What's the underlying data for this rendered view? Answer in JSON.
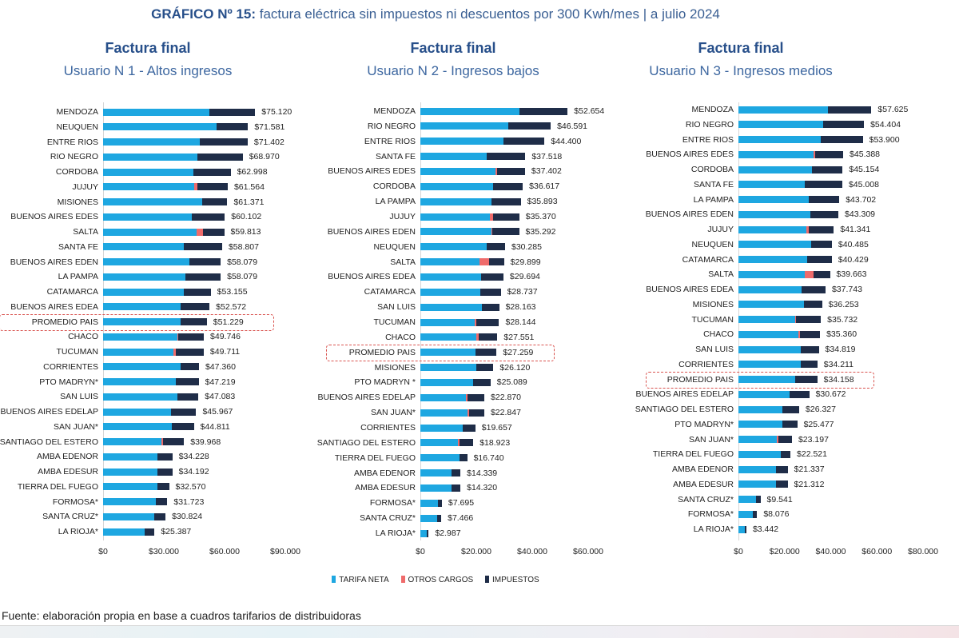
{
  "title": {
    "prefix": "GRÁFICO Nº 15:",
    "text": " factura eléctrica sin impuestos ni descuentos por 300 Kwh/mes | a julio 2024"
  },
  "legend": [
    {
      "label": "TARIFA NETA",
      "color": "#1ea7e1"
    },
    {
      "label": "OTROS CARGOS",
      "color": "#ef6b6b"
    },
    {
      "label": "IMPUESTOS",
      "color": "#1f2d48"
    }
  ],
  "source": "Fuente: elaboración propia en base a cuadros tarifarios de distribuidoras",
  "chart_data": [
    {
      "type": "bar",
      "orientation": "horizontal-stacked",
      "title": "Factura final",
      "subtitle": "Usuario N 1 - Altos ingresos",
      "xlim": [
        0,
        90000
      ],
      "ticks": [
        "$0",
        "$30.000",
        "$60.000",
        "$90.000"
      ],
      "tick_values": [
        0,
        30000,
        60000,
        90000
      ],
      "rows": [
        {
          "name": "MENDOZA",
          "label": "$75.120",
          "total": 75120,
          "neta": 52500,
          "otros": 0
        },
        {
          "name": "NEUQUEN",
          "label": "$71.581",
          "total": 71581,
          "neta": 56200,
          "otros": 0
        },
        {
          "name": "ENTRE RIOS",
          "label": "$71.402",
          "total": 71402,
          "neta": 47900,
          "otros": 0
        },
        {
          "name": "RIO NEGRO",
          "label": "$68.970",
          "total": 68970,
          "neta": 46600,
          "otros": 0
        },
        {
          "name": "CORDOBA",
          "label": "$62.998",
          "total": 62998,
          "neta": 44600,
          "otros": 0
        },
        {
          "name": "JUJUY",
          "label": "$61.564",
          "total": 61564,
          "neta": 45000,
          "otros": 1600
        },
        {
          "name": "MISIONES",
          "label": "$61.371",
          "total": 61371,
          "neta": 48900,
          "otros": 0
        },
        {
          "name": "BUENOS AIRES EDES",
          "label": "$60.102",
          "total": 60102,
          "neta": 43900,
          "otros": 0
        },
        {
          "name": "SALTA",
          "label": "$59.813",
          "total": 59813,
          "neta": 46000,
          "otros": 3400
        },
        {
          "name": "SANTA FE",
          "label": "$58.807",
          "total": 58807,
          "neta": 39700,
          "otros": 0
        },
        {
          "name": "BUENOS AIRES EDEN",
          "label": "$58.079",
          "total": 58079,
          "neta": 42600,
          "otros": 0
        },
        {
          "name": "LA PAMPA",
          "label": "$58.079",
          "total": 58079,
          "neta": 40800,
          "otros": 0
        },
        {
          "name": "CATAMARCA",
          "label": "$53.155",
          "total": 53155,
          "neta": 40000,
          "otros": 0
        },
        {
          "name": "BUENOS AIRES EDEA",
          "label": "$52.572",
          "total": 52572,
          "neta": 38400,
          "otros": 0
        },
        {
          "name": "PROMEDIO PAIS",
          "label": "$51.229",
          "total": 51229,
          "neta": 38200,
          "otros": 0,
          "highlight": true
        },
        {
          "name": "CHACO",
          "label": "$49.746",
          "total": 49746,
          "neta": 36800,
          "otros": 500
        },
        {
          "name": "TUCUMAN",
          "label": "$49.711",
          "total": 49711,
          "neta": 34700,
          "otros": 1100
        },
        {
          "name": "CORRIENTES",
          "label": "$47.360",
          "total": 47360,
          "neta": 38200,
          "otros": 0
        },
        {
          "name": "PTO MADRYN*",
          "label": "$47.219",
          "total": 47219,
          "neta": 36100,
          "otros": 0
        },
        {
          "name": "SAN LUIS",
          "label": "$47.083",
          "total": 47083,
          "neta": 36800,
          "otros": 0
        },
        {
          "name": "BUENOS AIRES EDELAP",
          "label": "$45.967",
          "total": 45967,
          "neta": 33400,
          "otros": 0
        },
        {
          "name": "SAN JUAN*",
          "label": "$44.811",
          "total": 44811,
          "neta": 33800,
          "otros": 0
        },
        {
          "name": "SANTIAGO DEL ESTERO",
          "label": "$39.968",
          "total": 39968,
          "neta": 28900,
          "otros": 600
        },
        {
          "name": "AMBA EDENOR",
          "label": "$34.228",
          "total": 34228,
          "neta": 26800,
          "otros": 0
        },
        {
          "name": "AMBA EDESUR",
          "label": "$34.192",
          "total": 34192,
          "neta": 26800,
          "otros": 0
        },
        {
          "name": "TIERRA DEL FUEGO",
          "label": "$32.570",
          "total": 32570,
          "neta": 26800,
          "otros": 0
        },
        {
          "name": "FORMOSA*",
          "label": "$31.723",
          "total": 31723,
          "neta": 26100,
          "otros": 0
        },
        {
          "name": "SANTA CRUZ*",
          "label": "$30.824",
          "total": 30824,
          "neta": 25300,
          "otros": 0
        },
        {
          "name": "LA RIOJA*",
          "label": "$25.387",
          "total": 25387,
          "neta": 20700,
          "otros": 0
        }
      ]
    },
    {
      "type": "bar",
      "orientation": "horizontal-stacked",
      "title": "Factura final",
      "subtitle": "Usuario N 2 - Ingresos bajos",
      "xlim": [
        0,
        60000
      ],
      "ticks": [
        "$0",
        "$20.000",
        "$40.000",
        "$60.000"
      ],
      "tick_values": [
        0,
        20000,
        40000,
        60000
      ],
      "rows": [
        {
          "name": "MENDOZA",
          "label": "$52.654",
          "total": 52654,
          "neta": 35300,
          "otros": 0
        },
        {
          "name": "RIO NEGRO",
          "label": "$46.591",
          "total": 46591,
          "neta": 31400,
          "otros": 0
        },
        {
          "name": "ENTRE RIOS",
          "label": "$44.400",
          "total": 44400,
          "neta": 29800,
          "otros": 0
        },
        {
          "name": "SANTA FE",
          "label": "$37.518",
          "total": 37518,
          "neta": 23600,
          "otros": 0
        },
        {
          "name": "BUENOS AIRES EDES",
          "label": "$37.402",
          "total": 37402,
          "neta": 26800,
          "otros": 700
        },
        {
          "name": "CORDOBA",
          "label": "$36.617",
          "total": 36617,
          "neta": 26000,
          "otros": 0
        },
        {
          "name": "LA PAMPA",
          "label": "$35.893",
          "total": 35893,
          "neta": 25400,
          "otros": 0
        },
        {
          "name": "JUJUY",
          "label": "$35.370",
          "total": 35370,
          "neta": 24800,
          "otros": 1200
        },
        {
          "name": "BUENOS AIRES EDEN",
          "label": "$35.292",
          "total": 35292,
          "neta": 25400,
          "otros": 300
        },
        {
          "name": "NEUQUEN",
          "label": "$30.285",
          "total": 30285,
          "neta": 23800,
          "otros": 0
        },
        {
          "name": "SALTA",
          "label": "$29.899",
          "total": 29899,
          "neta": 21200,
          "otros": 3400
        },
        {
          "name": "BUENOS AIRES EDEA",
          "label": "$29.694",
          "total": 29694,
          "neta": 21600,
          "otros": 0
        },
        {
          "name": "CATAMARCA",
          "label": "$28.737",
          "total": 28737,
          "neta": 21500,
          "otros": 0
        },
        {
          "name": "SAN LUIS",
          "label": "$28.163",
          "total": 28163,
          "neta": 22000,
          "otros": 0
        },
        {
          "name": "TUCUMAN",
          "label": "$28.144",
          "total": 28144,
          "neta": 19300,
          "otros": 600
        },
        {
          "name": "CHACO",
          "label": "$27.551",
          "total": 27551,
          "neta": 20100,
          "otros": 700
        },
        {
          "name": "PROMEDIO PAIS",
          "label": "$27.259",
          "total": 27259,
          "neta": 19700,
          "otros": 0,
          "highlight": true
        },
        {
          "name": "MISIONES",
          "label": "$26.120",
          "total": 26120,
          "neta": 20100,
          "otros": 0
        },
        {
          "name": "PTO MADRYN *",
          "label": "$25.089",
          "total": 25089,
          "neta": 18900,
          "otros": 0
        },
        {
          "name": "BUENOS AIRES EDELAP",
          "label": "$22.870",
          "total": 22870,
          "neta": 16300,
          "otros": 600
        },
        {
          "name": "SAN JUAN*",
          "label": "$22.847",
          "total": 22847,
          "neta": 16900,
          "otros": 400
        },
        {
          "name": "CORRIENTES",
          "label": "$19.657",
          "total": 19657,
          "neta": 15100,
          "otros": 0
        },
        {
          "name": "SANTIAGO DEL ESTERO",
          "label": "$18.923",
          "total": 18923,
          "neta": 13500,
          "otros": 600
        },
        {
          "name": "TIERRA DEL FUEGO",
          "label": "$16.740",
          "total": 16740,
          "neta": 13900,
          "otros": 0
        },
        {
          "name": "AMBA EDENOR",
          "label": "$14.339",
          "total": 14339,
          "neta": 11000,
          "otros": 0
        },
        {
          "name": "AMBA EDESUR",
          "label": "$14.320",
          "total": 14320,
          "neta": 11200,
          "otros": 0
        },
        {
          "name": "FORMOSA*",
          "label": "$7.695",
          "total": 7695,
          "neta": 6300,
          "otros": 0
        },
        {
          "name": "SANTA CRUZ*",
          "label": "$7.466",
          "total": 7466,
          "neta": 6000,
          "otros": 0
        },
        {
          "name": "LA RIOJA*",
          "label": "$2.987",
          "total": 2987,
          "neta": 2200,
          "otros": 0
        }
      ]
    },
    {
      "type": "bar",
      "orientation": "horizontal-stacked",
      "title": "Factura final",
      "subtitle": "Usuario N 3 - Ingresos medios",
      "xlim": [
        0,
        80000
      ],
      "ticks": [
        "$0",
        "$20.000",
        "$40.000",
        "$60.000",
        "$80.000"
      ],
      "tick_values": [
        0,
        20000,
        40000,
        60000,
        80000
      ],
      "rows": [
        {
          "name": "MENDOZA",
          "label": "$57.625",
          "total": 57625,
          "neta": 38900,
          "otros": 0
        },
        {
          "name": "RIO NEGRO",
          "label": "$54.404",
          "total": 54404,
          "neta": 36600,
          "otros": 0
        },
        {
          "name": "ENTRE RIOS",
          "label": "$53.900",
          "total": 53900,
          "neta": 35800,
          "otros": 0
        },
        {
          "name": "BUENOS AIRES EDES",
          "label": "$45.388",
          "total": 45388,
          "neta": 32700,
          "otros": 700
        },
        {
          "name": "CORDOBA",
          "label": "$45.154",
          "total": 45154,
          "neta": 31900,
          "otros": 0
        },
        {
          "name": "SANTA FE",
          "label": "$45.008",
          "total": 45008,
          "neta": 28900,
          "otros": 0
        },
        {
          "name": "LA PAMPA",
          "label": "$43.702",
          "total": 43702,
          "neta": 30400,
          "otros": 0
        },
        {
          "name": "BUENOS AIRES EDEN",
          "label": "$43.309",
          "total": 43309,
          "neta": 31300,
          "otros": 0
        },
        {
          "name": "JUJUY",
          "label": "$41.341",
          "total": 41341,
          "neta": 29300,
          "otros": 1200
        },
        {
          "name": "NEUQUEN",
          "label": "$40.485",
          "total": 40485,
          "neta": 31400,
          "otros": 0
        },
        {
          "name": "CATAMARCA",
          "label": "$40.429",
          "total": 40429,
          "neta": 29900,
          "otros": 0
        },
        {
          "name": "SALTA",
          "label": "$39.663",
          "total": 39663,
          "neta": 28900,
          "otros": 3700
        },
        {
          "name": "BUENOS AIRES EDEA",
          "label": "$37.743",
          "total": 37743,
          "neta": 27300,
          "otros": 0
        },
        {
          "name": "MISIONES",
          "label": "$36.253",
          "total": 36253,
          "neta": 28300,
          "otros": 0
        },
        {
          "name": "TUCUMAN",
          "label": "$35.732",
          "total": 35732,
          "neta": 24500,
          "otros": 600
        },
        {
          "name": "CHACO",
          "label": "$35.360",
          "total": 35360,
          "neta": 25900,
          "otros": 600
        },
        {
          "name": "SAN LUIS",
          "label": "$34.819",
          "total": 34819,
          "neta": 26900,
          "otros": 0
        },
        {
          "name": "CORRIENTES",
          "label": "$34.211",
          "total": 34211,
          "neta": 26900,
          "otros": 0
        },
        {
          "name": "PROMEDIO PAIS",
          "label": "$34.158",
          "total": 34158,
          "neta": 24700,
          "otros": 0,
          "highlight": true
        },
        {
          "name": "BUENOS AIRES EDELAP",
          "label": "$30.672",
          "total": 30672,
          "neta": 22200,
          "otros": 0
        },
        {
          "name": "SANTIAGO DEL ESTERO",
          "label": "$26.327",
          "total": 26327,
          "neta": 19200,
          "otros": 0
        },
        {
          "name": "PTO MADRYN*",
          "label": "$25.477",
          "total": 25477,
          "neta": 19100,
          "otros": 0
        },
        {
          "name": "SAN JUAN*",
          "label": "$23.197",
          "total": 23197,
          "neta": 16600,
          "otros": 600
        },
        {
          "name": "TIERRA DEL FUEGO",
          "label": "$22.521",
          "total": 22521,
          "neta": 18200,
          "otros": 0
        },
        {
          "name": "AMBA EDENOR",
          "label": "$21.337",
          "total": 21337,
          "neta": 16400,
          "otros": 0
        },
        {
          "name": "AMBA EDESUR",
          "label": "$21.312",
          "total": 21312,
          "neta": 16400,
          "otros": 0
        },
        {
          "name": "SANTA CRUZ*",
          "label": "$9.541",
          "total": 9541,
          "neta": 7600,
          "otros": 0
        },
        {
          "name": "FORMOSA*",
          "label": "$8.076",
          "total": 8076,
          "neta": 6400,
          "otros": 0
        },
        {
          "name": "LA RIOJA*",
          "label": "$3.442",
          "total": 3442,
          "neta": 2700,
          "otros": 0
        }
      ]
    }
  ]
}
